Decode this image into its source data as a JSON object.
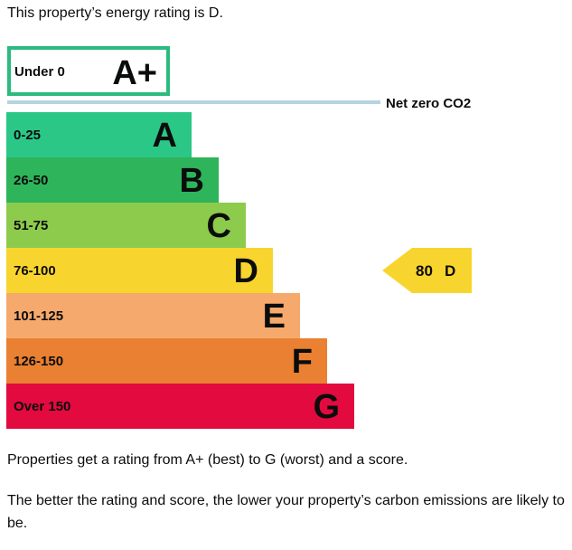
{
  "intro_text": "This property’s energy rating is D.",
  "outro_text_1": "Properties get a rating from A+ (best) to G (worst) and a score.",
  "outro_text_2": "The better the rating and score, the lower your property’s carbon emissions are likely to be.",
  "chart_data": {
    "type": "bar",
    "orientation": "horizontal",
    "top_band": {
      "range": "Under 0",
      "letter": "A+",
      "border_color": "#2bbb7e"
    },
    "threshold_label": "Net zero CO2",
    "threshold_color": "#b5d3e0",
    "bands": [
      {
        "range": "0-25",
        "letter": "A",
        "color": "#2bc787"
      },
      {
        "range": "26-50",
        "letter": "B",
        "color": "#2eb45b"
      },
      {
        "range": "51-75",
        "letter": "C",
        "color": "#8ccb4c"
      },
      {
        "range": "76-100",
        "letter": "D",
        "color": "#f8d52e"
      },
      {
        "range": "101-125",
        "letter": "E",
        "color": "#f6a96c"
      },
      {
        "range": "126-150",
        "letter": "F",
        "color": "#e98032"
      },
      {
        "range": "Over 150",
        "letter": "G",
        "color": "#e20a3f"
      }
    ],
    "current": {
      "score": "80",
      "letter": "D",
      "band_index": 3,
      "color": "#f8d52e"
    }
  }
}
